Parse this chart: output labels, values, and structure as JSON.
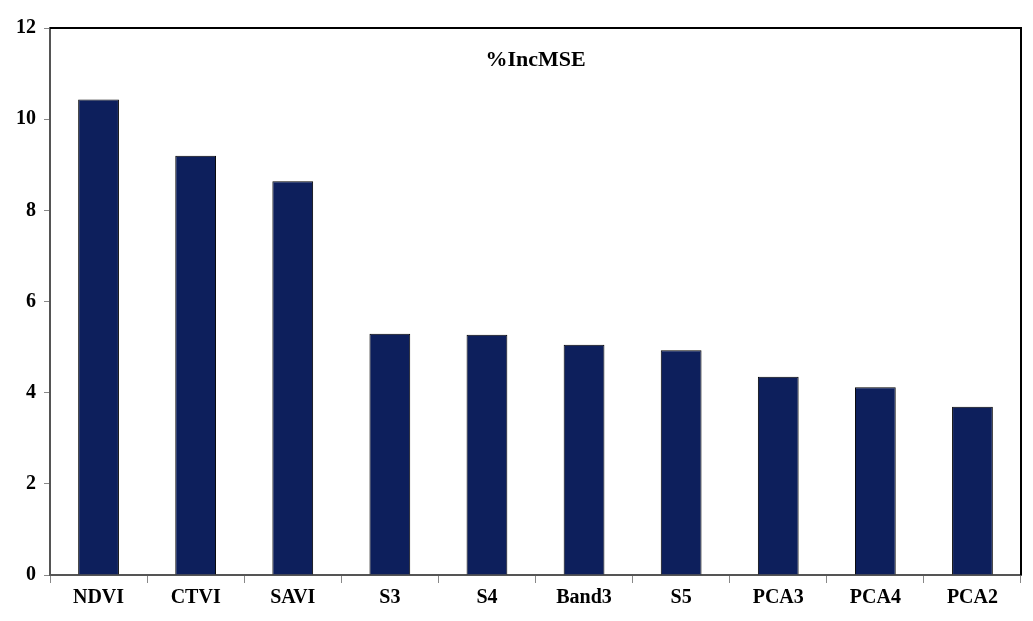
{
  "chart_data": {
    "type": "bar",
    "title": "%IncMSE",
    "categories": [
      "NDVI",
      "CTVI",
      "SAVI",
      "S3",
      "S4",
      "Band3",
      "S5",
      "PCA3",
      "PCA4",
      "PCA2"
    ],
    "values": [
      10.43,
      9.2,
      8.64,
      5.29,
      5.27,
      5.05,
      4.93,
      4.35,
      4.12,
      3.69
    ],
    "color": "#0d1f5c",
    "ylim": [
      0,
      12
    ],
    "yticks": [
      0,
      2,
      4,
      6,
      8,
      10,
      12
    ],
    "grid": false,
    "legend": false
  }
}
